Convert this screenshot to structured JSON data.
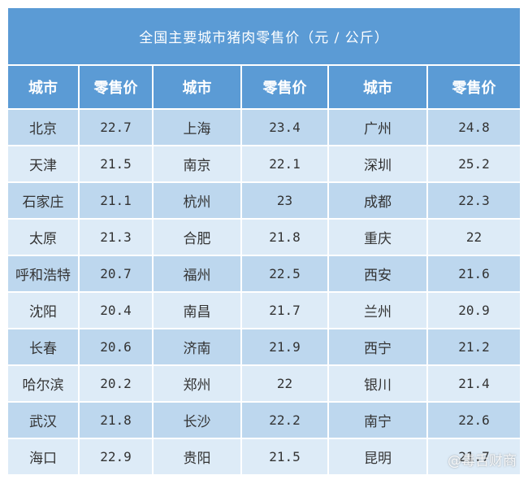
{
  "title": "全国主要城市猪肉零售价（元 / 公斤）",
  "headers": [
    "城市",
    "零售价",
    "城市",
    "零售价",
    "城市",
    "零售价"
  ],
  "rows": [
    [
      "北京",
      "22.7",
      "上海",
      "23.4",
      "广州",
      "24.8"
    ],
    [
      "天津",
      "21.5",
      "南京",
      "22.1",
      "深圳",
      "25.2"
    ],
    [
      "石家庄",
      "21.1",
      "杭州",
      "23",
      "成都",
      "22.3"
    ],
    [
      "太原",
      "21.3",
      "合肥",
      "21.8",
      "重庆",
      "22"
    ],
    [
      "呼和浩特",
      "20.7",
      "福州",
      "22.5",
      "西安",
      "21.6"
    ],
    [
      "沈阳",
      "20.4",
      "南昌",
      "21.7",
      "兰州",
      "20.9"
    ],
    [
      "长春",
      "20.6",
      "济南",
      "21.9",
      "西宁",
      "21.2"
    ],
    [
      "哈尔滨",
      "20.2",
      "郑州",
      "22",
      "银川",
      "21.4"
    ],
    [
      "武汉",
      "21.8",
      "长沙",
      "22.2",
      "南宁",
      "22.6"
    ],
    [
      "海口",
      "22.9",
      "贵阳",
      "21.5",
      "昆明",
      "21.7"
    ]
  ],
  "watermark": "@毒舌财商",
  "colors": {
    "header": "#5b9bd5",
    "row_dark": "#bdd7ee",
    "row_light": "#ddebf7"
  }
}
